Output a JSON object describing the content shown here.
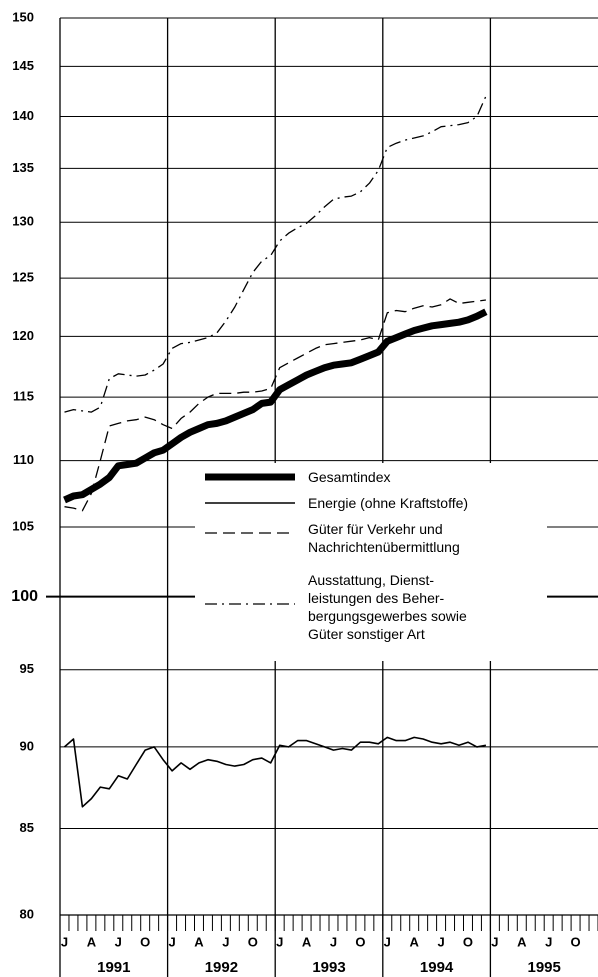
{
  "chart_data": {
    "type": "line",
    "log_scale": true,
    "ylim": [
      80,
      150
    ],
    "yticks": [
      80,
      85,
      90,
      95,
      100,
      105,
      110,
      115,
      120,
      125,
      130,
      135,
      140,
      145,
      150
    ],
    "reference_line": 100,
    "grid": true,
    "categories": [
      "J",
      null,
      null,
      "A",
      null,
      null,
      "J",
      null,
      null,
      "O",
      null,
      null,
      "J",
      null,
      null,
      "A",
      null,
      null,
      "J",
      null,
      null,
      "O",
      null,
      null,
      "J",
      null,
      null,
      "A",
      null,
      null,
      "J",
      null,
      null,
      "O",
      null,
      null,
      "J",
      null,
      null,
      "A",
      null,
      null,
      "J",
      null,
      null,
      "O",
      null,
      null,
      "J",
      null,
      null,
      "A",
      null,
      null,
      "J",
      null,
      null,
      "O",
      null,
      null
    ],
    "years": [
      "1991",
      "1992",
      "1993",
      "1994",
      "1995"
    ],
    "series": [
      {
        "name": "Gesamtindex",
        "color": "#000000",
        "dash": "solid",
        "line_width": 7,
        "values": [
          107.0,
          107.3,
          107.4,
          107.8,
          108.2,
          108.7,
          109.6,
          109.7,
          109.8,
          110.2,
          110.6,
          110.8,
          111.3,
          111.8,
          112.2,
          112.5,
          112.8,
          112.9,
          113.1,
          113.4,
          113.7,
          114.0,
          114.5,
          114.6,
          115.6,
          116.0,
          116.4,
          116.8,
          117.1,
          117.4,
          117.6,
          117.7,
          117.8,
          118.1,
          118.4,
          118.7,
          119.6,
          119.9,
          120.2,
          120.5,
          120.7,
          120.9,
          121.0,
          121.1,
          121.2,
          121.4,
          121.7,
          122.1,
          null,
          null,
          null,
          null,
          null,
          null,
          null,
          null,
          null,
          null,
          null,
          null
        ]
      },
      {
        "name": "Energie (ohne Kraftstoffe)",
        "color": "#000000",
        "dash": "solid",
        "line_width": 1.6,
        "values": [
          90.0,
          90.5,
          86.3,
          86.8,
          87.5,
          87.4,
          88.2,
          88.0,
          88.9,
          89.8,
          90.0,
          89.2,
          88.5,
          89.0,
          88.6,
          89.0,
          89.2,
          89.1,
          88.9,
          88.8,
          88.9,
          89.2,
          89.3,
          89.0,
          90.1,
          90.0,
          90.4,
          90.4,
          90.2,
          90.0,
          89.8,
          89.9,
          89.8,
          90.3,
          90.3,
          90.2,
          90.6,
          90.4,
          90.4,
          90.6,
          90.5,
          90.3,
          90.2,
          90.3,
          90.1,
          90.3,
          90.0,
          90.1,
          null,
          null,
          null,
          null,
          null,
          null,
          null,
          null,
          null,
          null,
          null,
          null
        ]
      },
      {
        "name": "Güter für Verkehr und\nNachrichtenübermittlung",
        "color": "#000000",
        "dash": "dashed",
        "line_width": 1.3,
        "values": [
          106.5,
          106.4,
          106.2,
          107.5,
          110.0,
          112.7,
          112.9,
          113.1,
          113.2,
          113.4,
          113.2,
          112.8,
          112.5,
          113.3,
          113.8,
          114.5,
          115.0,
          115.3,
          115.3,
          115.3,
          115.4,
          115.4,
          115.5,
          115.7,
          117.4,
          117.8,
          118.2,
          118.6,
          119.0,
          119.3,
          119.4,
          119.5,
          119.6,
          119.7,
          119.9,
          119.7,
          122.0,
          122.2,
          122.1,
          122.4,
          122.6,
          122.5,
          122.7,
          123.2,
          122.8,
          122.9,
          123.0,
          123.1,
          null,
          null,
          null,
          null,
          null,
          null,
          null,
          null,
          null,
          null,
          null,
          null
        ]
      },
      {
        "name": "Ausstattung, Dienst-\nleistungen des Beher-\nbergungsgewerbes sowie\nGüter sonstiger Art",
        "color": "#000000",
        "dash": "dashdot",
        "line_width": 1.3,
        "values": [
          113.8,
          114.0,
          113.9,
          113.8,
          114.2,
          116.5,
          116.9,
          116.8,
          116.7,
          116.8,
          117.2,
          117.7,
          119.0,
          119.4,
          119.5,
          119.7,
          119.9,
          120.3,
          121.3,
          122.5,
          124.0,
          125.5,
          126.5,
          127.0,
          128.3,
          129.0,
          129.5,
          129.9,
          130.6,
          131.4,
          132.1,
          132.3,
          132.4,
          132.8,
          133.6,
          134.8,
          137.0,
          137.4,
          137.7,
          137.9,
          138.1,
          138.5,
          139.0,
          139.1,
          139.2,
          139.4,
          140.0,
          142.0,
          null,
          null,
          null,
          null,
          null,
          null,
          null,
          null,
          null,
          null,
          null,
          null
        ]
      }
    ]
  }
}
